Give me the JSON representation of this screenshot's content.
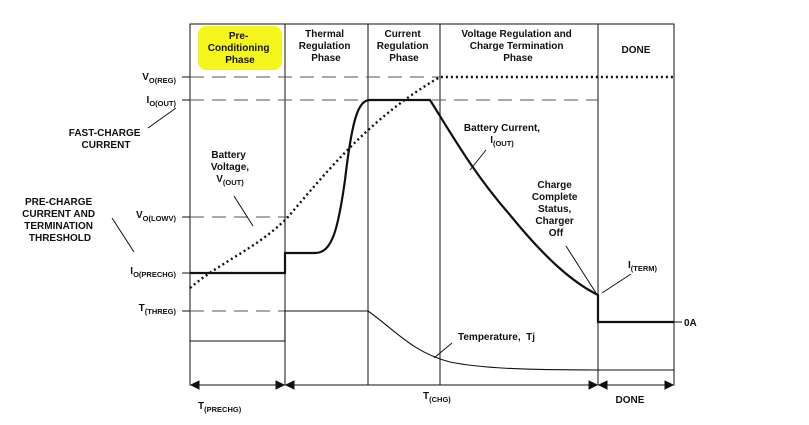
{
  "phases": {
    "precondition": [
      "Pre-",
      "Conditioning",
      "Phase"
    ],
    "thermal": [
      "Thermal",
      "Regulation",
      "Phase"
    ],
    "current": [
      "Current",
      "Regulation",
      "Phase"
    ],
    "voltage": [
      "Voltage Regulation and",
      "Charge Termination",
      "Phase"
    ],
    "done": [
      "DONE"
    ]
  },
  "highlight_color": "#f5f51e",
  "levels": {
    "vo_reg": {
      "main": "V",
      "sub": "O(REG)"
    },
    "io_out": {
      "main": "I",
      "sub": "O(OUT)"
    },
    "vo_low": {
      "main": "V",
      "sub": "O(LOWV)"
    },
    "io_prechg": {
      "main": "I",
      "sub": "O(PRECHG)"
    },
    "t_threg": {
      "main": "T",
      "sub": "(THREG)"
    }
  },
  "left_labels": {
    "fast_charge": [
      "FAST-CHARGE",
      "CURRENT"
    ],
    "precharge": [
      "PRE-CHARGE",
      "CURRENT AND",
      "TERMINATION",
      "THRESHOLD"
    ]
  },
  "annotations": {
    "battery_voltage": [
      "Battery",
      "Voltage,"
    ],
    "battery_voltage_sym": {
      "main": "V",
      "sub": "(OUT)"
    },
    "battery_current": "Battery Current,",
    "battery_current_sym": {
      "main": "I",
      "sub": "(OUT)"
    },
    "charge_complete": [
      "Charge",
      "Complete",
      "Status,",
      "Charger",
      "Off"
    ],
    "i_term": {
      "main": "I",
      "sub": "(TERM)"
    },
    "temperature": "Temperature,  Tj",
    "zero_amp": "0A"
  },
  "timing": {
    "t_prechg": {
      "main": "T",
      "sub": "(PRECHG)"
    },
    "t_chg": {
      "main": "T",
      "sub": "(CHG)"
    },
    "done": "DONE"
  }
}
